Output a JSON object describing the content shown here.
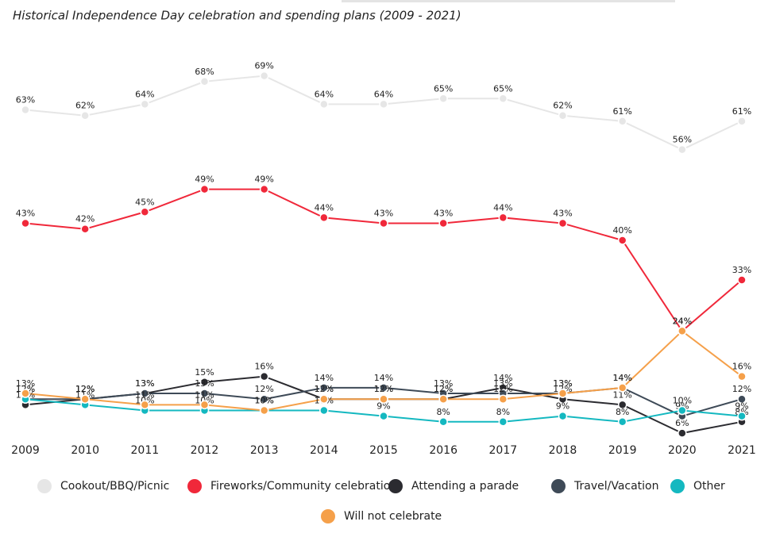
{
  "chart_data": {
    "type": "line",
    "title": "Historical Independence Day celebration and spending plans (2009 - 2021)",
    "categories": [
      "2009",
      "2010",
      "2011",
      "2012",
      "2013",
      "2014",
      "2015",
      "2016",
      "2017",
      "2018",
      "2019",
      "2020",
      "2021"
    ],
    "series": [
      {
        "name": "Cookout/BBQ/Picnic",
        "color": "#e6e6e6",
        "values": [
          63,
          62,
          64,
          68,
          69,
          64,
          64,
          65,
          65,
          62,
          61,
          56,
          61
        ],
        "value_labels": [
          "63%",
          "62%",
          "64%",
          "68%",
          "69%",
          "64%",
          "64%",
          "65%",
          "65%",
          "62%",
          "61%",
          "56%",
          "61%"
        ]
      },
      {
        "name": "Fireworks/Community celebration",
        "color": "#f0283a",
        "values": [
          43,
          42,
          45,
          49,
          49,
          44,
          43,
          43,
          44,
          43,
          40,
          24,
          33
        ],
        "value_labels": [
          "43%",
          "42%",
          "45%",
          "49%",
          "49%",
          "44%",
          "43%",
          "43%",
          "44%",
          "43%",
          "40%",
          "24%",
          "33%"
        ]
      },
      {
        "name": "Attending a parade",
        "color": "#2b2b30",
        "values": [
          11,
          12,
          13,
          15,
          16,
          12,
          12,
          12,
          14,
          12,
          11,
          6,
          8
        ],
        "value_labels": [
          "11%",
          "12%",
          "13%",
          "15%",
          "16%",
          "12%",
          "12%",
          "12%",
          "14%",
          "12%",
          "11%",
          "6%",
          "8%"
        ]
      },
      {
        "name": "Travel/Vacation",
        "color": "#3e4a57",
        "values": [
          12,
          12,
          13,
          13,
          12,
          14,
          14,
          13,
          13,
          13,
          14,
          9,
          12
        ],
        "value_labels": [
          "12%",
          "12%",
          "13%",
          "13%",
          "12%",
          "14%",
          "14%",
          "13%",
          "13%",
          "13%",
          "14%",
          "9%",
          "12%"
        ]
      },
      {
        "name": "Other",
        "color": "#14b8c0",
        "values": [
          12,
          11,
          10,
          10,
          10,
          10,
          9,
          8,
          8,
          9,
          8,
          10,
          9
        ],
        "value_labels": [
          "12%",
          "11%",
          "10%",
          "10%",
          "10%",
          "10%",
          "9%",
          "8%",
          "8%",
          "9%",
          "8%",
          "10%",
          "9%"
        ]
      },
      {
        "name": "Will not celebrate",
        "color": "#f5a04a",
        "values": [
          13,
          12,
          11,
          11,
          10,
          12,
          12,
          12,
          12,
          13,
          14,
          24,
          16
        ],
        "value_labels": [
          "13%",
          "12%",
          "11%",
          "11%",
          "10%",
          "12%",
          "12%",
          "12%",
          "12%",
          "13%",
          "14%",
          "24%",
          "16%"
        ]
      }
    ]
  }
}
